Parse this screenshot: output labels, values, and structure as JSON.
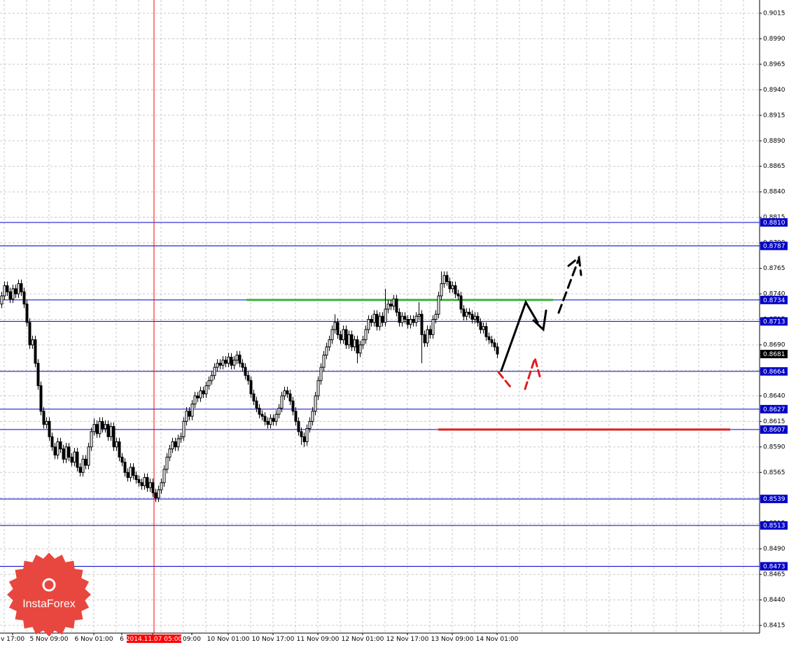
{
  "chart_data": {
    "type": "candlestick",
    "watermark": "InstaForex",
    "categories": [
      null,
      null,
      null,
      null,
      "v 17:00",
      null,
      null,
      null,
      null,
      null,
      null,
      null,
      null,
      null,
      null,
      null,
      null,
      "5 Nov 09:00",
      null,
      null,
      null,
      null,
      null,
      null,
      null,
      null,
      null,
      null,
      null,
      null,
      null,
      null,
      null,
      "6 Nov 01:00",
      null,
      null,
      null,
      null,
      null,
      null,
      null,
      null,
      null,
      "6",
      null,
      null,
      null,
      null,
      null,
      null,
      null,
      null,
      null,
      null,
      "2014.11.07 05:00",
      null,
      null,
      null,
      null,
      null,
      null,
      null,
      null,
      null,
      null,
      null,
      null,
      null,
      "09:00",
      null,
      null,
      null,
      null,
      null,
      null,
      null,
      null,
      null,
      null,
      null,
      null,
      "10 Nov 01:00",
      null,
      null,
      null,
      null,
      null,
      null,
      null,
      null,
      null,
      null,
      null,
      null,
      null,
      null,
      null,
      "10 Nov 17:00",
      null,
      null,
      null,
      null,
      null,
      null,
      null,
      null,
      null,
      null,
      null,
      null,
      null,
      null,
      null,
      "11 Nov 09:00",
      null,
      null,
      null,
      null,
      null,
      null,
      null,
      null,
      null,
      null,
      null,
      null,
      null,
      null,
      null,
      "12 Nov 01:00",
      null,
      null,
      null,
      null,
      null,
      null,
      null,
      null,
      null,
      null,
      null,
      null,
      null,
      null,
      null,
      "12 Nov 17:00",
      null,
      null,
      null,
      null,
      null,
      null,
      null,
      null,
      null,
      null,
      null,
      null,
      null,
      null,
      null,
      "13 Nov 09:00",
      null,
      null,
      null,
      null,
      null,
      null,
      null,
      null,
      null,
      null,
      null,
      null,
      null,
      null,
      null,
      "14 Nov 01:00"
    ],
    "open": [
      0.873,
      0.8738,
      0.8748,
      0.8742,
      0.8735,
      0.8745,
      0.874,
      0.875,
      0.8742,
      0.873,
      0.8712,
      0.869,
      0.8695,
      0.8672,
      0.865,
      0.8625,
      0.8612,
      0.8615,
      0.86,
      0.859,
      0.8582,
      0.8595,
      0.8588,
      0.8578,
      0.859,
      0.858,
      0.8575,
      0.8585,
      0.857,
      0.8565,
      0.8578,
      0.8572,
      0.859,
      0.8605,
      0.8612,
      0.8603,
      0.8615,
      0.8608,
      0.8612,
      0.86,
      0.861,
      0.859,
      0.8595,
      0.858,
      0.8575,
      0.8565,
      0.856,
      0.857,
      0.8562,
      0.8558,
      0.8555,
      0.8552,
      0.856,
      0.855,
      0.8555,
      0.8545,
      0.854,
      0.8548,
      0.8555,
      0.8568,
      0.858,
      0.8588,
      0.8595,
      0.859,
      0.8598,
      0.86,
      0.8615,
      0.8625,
      0.862,
      0.8632,
      0.864,
      0.8638,
      0.8645,
      0.8642,
      0.865,
      0.8655,
      0.866,
      0.8668,
      0.8672,
      0.867,
      0.8675,
      0.8672,
      0.8678,
      0.867,
      0.8675,
      0.868,
      0.8672,
      0.8668,
      0.866,
      0.8655,
      0.8642,
      0.8635,
      0.8628,
      0.8622,
      0.862,
      0.8615,
      0.8612,
      0.8618,
      0.8615,
      0.8622,
      0.8628,
      0.864,
      0.8645,
      0.8642,
      0.8635,
      0.8625,
      0.8615,
      0.8605,
      0.86,
      0.8595,
      0.8608,
      0.8615,
      0.8625,
      0.864,
      0.8655,
      0.8668,
      0.868,
      0.8688,
      0.8695,
      0.8705,
      0.8712,
      0.87,
      0.8695,
      0.8705,
      0.869,
      0.87,
      0.8688,
      0.8695,
      0.8682,
      0.869,
      0.8695,
      0.8705,
      0.8715,
      0.8712,
      0.872,
      0.8708,
      0.8718,
      0.8712,
      0.8725,
      0.873,
      0.8728,
      0.8735,
      0.8722,
      0.8712,
      0.8718,
      0.8715,
      0.871,
      0.8715,
      0.8712,
      0.8718,
      0.872,
      0.87,
      0.8692,
      0.8705,
      0.87,
      0.8715,
      0.872,
      0.8738,
      0.875,
      0.8758,
      0.8752,
      0.8745,
      0.8748,
      0.874,
      0.8738,
      0.8725,
      0.8718,
      0.8722,
      0.872,
      0.8715,
      0.8718,
      0.8712,
      0.8705,
      0.8708,
      0.8698,
      0.8695,
      0.8692,
      0.8688
    ],
    "high": [
      0.8742,
      0.8752,
      0.8752,
      0.8746,
      0.8749,
      0.8749,
      0.8754,
      0.8754,
      0.8746,
      0.8734,
      0.8716,
      0.8699,
      0.8699,
      0.8676,
      0.8654,
      0.8629,
      0.8619,
      0.8619,
      0.8604,
      0.8594,
      0.8599,
      0.8599,
      0.8592,
      0.8594,
      0.8594,
      0.8584,
      0.8589,
      0.8589,
      0.8574,
      0.8582,
      0.8582,
      0.8594,
      0.8609,
      0.8618,
      0.8616,
      0.8619,
      0.8619,
      0.8616,
      0.8616,
      0.8614,
      0.8614,
      0.8599,
      0.8599,
      0.8584,
      0.8579,
      0.8569,
      0.8574,
      0.8574,
      0.8566,
      0.8562,
      0.8559,
      0.8564,
      0.8564,
      0.8559,
      0.8559,
      0.8549,
      0.8552,
      0.8559,
      0.8572,
      0.8584,
      0.8592,
      0.8599,
      0.8599,
      0.8602,
      0.8604,
      0.8619,
      0.8629,
      0.8629,
      0.8636,
      0.8644,
      0.8644,
      0.8649,
      0.8649,
      0.8654,
      0.8659,
      0.8664,
      0.8672,
      0.8676,
      0.8676,
      0.8679,
      0.8679,
      0.8682,
      0.8682,
      0.8679,
      0.8684,
      0.8684,
      0.8676,
      0.8672,
      0.8664,
      0.8659,
      0.8646,
      0.8639,
      0.8632,
      0.8626,
      0.8624,
      0.8619,
      0.8622,
      0.8622,
      0.8626,
      0.8632,
      0.8644,
      0.8649,
      0.8649,
      0.8646,
      0.8639,
      0.8629,
      0.8619,
      0.8609,
      0.8604,
      0.8612,
      0.8619,
      0.8629,
      0.8644,
      0.8659,
      0.8672,
      0.8684,
      0.8692,
      0.8699,
      0.8709,
      0.872,
      0.8716,
      0.8704,
      0.8709,
      0.8709,
      0.8704,
      0.8704,
      0.8699,
      0.8699,
      0.8694,
      0.8699,
      0.8709,
      0.8719,
      0.8719,
      0.8724,
      0.8724,
      0.8722,
      0.8722,
      0.8745,
      0.8734,
      0.8734,
      0.8739,
      0.8739,
      0.8726,
      0.8722,
      0.8722,
      0.8719,
      0.8719,
      0.8719,
      0.8722,
      0.8732,
      0.8724,
      0.8704,
      0.8709,
      0.8709,
      0.8719,
      0.8724,
      0.8742,
      0.8762,
      0.8762,
      0.8762,
      0.8756,
      0.8752,
      0.8752,
      0.8744,
      0.8742,
      0.8729,
      0.8726,
      0.8726,
      0.8724,
      0.8722,
      0.8722,
      0.8716,
      0.8712,
      0.8712,
      0.8702,
      0.8699,
      0.8696,
      0.8692
    ],
    "low": [
      0.8726,
      0.8734,
      0.8738,
      0.8731,
      0.8731,
      0.8736,
      0.8736,
      0.8738,
      0.8726,
      0.8708,
      0.8686,
      0.8686,
      0.8668,
      0.8646,
      0.8621,
      0.8608,
      0.8608,
      0.8596,
      0.8586,
      0.8578,
      0.8578,
      0.8584,
      0.8574,
      0.8574,
      0.8576,
      0.8571,
      0.8571,
      0.8566,
      0.8561,
      0.8561,
      0.8568,
      0.8568,
      0.8586,
      0.8601,
      0.8599,
      0.8599,
      0.8604,
      0.8604,
      0.8596,
      0.8596,
      0.8586,
      0.8586,
      0.8576,
      0.8571,
      0.8561,
      0.8556,
      0.8556,
      0.8558,
      0.8554,
      0.8551,
      0.8548,
      0.8548,
      0.8546,
      0.8546,
      0.8541,
      0.8536,
      0.8536,
      0.8544,
      0.8551,
      0.8564,
      0.8576,
      0.8584,
      0.8586,
      0.8586,
      0.8594,
      0.8596,
      0.8611,
      0.8616,
      0.8616,
      0.8628,
      0.8634,
      0.8634,
      0.8638,
      0.8638,
      0.8646,
      0.8651,
      0.8656,
      0.8664,
      0.8666,
      0.8666,
      0.8668,
      0.8668,
      0.8666,
      0.8666,
      0.8671,
      0.8668,
      0.8664,
      0.8656,
      0.8651,
      0.8638,
      0.8631,
      0.8624,
      0.8618,
      0.8616,
      0.8611,
      0.8608,
      0.8608,
      0.8611,
      0.8611,
      0.8618,
      0.8624,
      0.8636,
      0.8638,
      0.8631,
      0.8621,
      0.8611,
      0.8601,
      0.8592,
      0.859,
      0.8591,
      0.8604,
      0.8611,
      0.8621,
      0.8636,
      0.8651,
      0.8664,
      0.8676,
      0.8684,
      0.8691,
      0.8701,
      0.8696,
      0.8691,
      0.8691,
      0.8686,
      0.8686,
      0.8684,
      0.8684,
      0.8672,
      0.8678,
      0.8686,
      0.8691,
      0.8701,
      0.8708,
      0.8708,
      0.8704,
      0.8704,
      0.8708,
      0.8708,
      0.8721,
      0.8724,
      0.8724,
      0.8718,
      0.8708,
      0.8708,
      0.8711,
      0.8706,
      0.8706,
      0.8708,
      0.8708,
      0.8714,
      0.8672,
      0.8688,
      0.8688,
      0.8696,
      0.8696,
      0.8711,
      0.8716,
      0.8734,
      0.8746,
      0.8748,
      0.8741,
      0.8741,
      0.8736,
      0.8734,
      0.8721,
      0.8714,
      0.8714,
      0.8716,
      0.8711,
      0.8711,
      0.8708,
      0.8701,
      0.8701,
      0.8694,
      0.8691,
      0.8688,
      0.8684,
      0.8677
    ],
    "close": [
      0.8738,
      0.8748,
      0.8742,
      0.8735,
      0.8745,
      0.874,
      0.875,
      0.8742,
      0.873,
      0.8712,
      0.869,
      0.8695,
      0.8672,
      0.865,
      0.8625,
      0.8612,
      0.8615,
      0.86,
      0.859,
      0.8582,
      0.8595,
      0.8588,
      0.8578,
      0.859,
      0.858,
      0.8575,
      0.8585,
      0.857,
      0.8565,
      0.8578,
      0.8572,
      0.859,
      0.8605,
      0.8612,
      0.8603,
      0.8615,
      0.8608,
      0.8612,
      0.86,
      0.861,
      0.859,
      0.8595,
      0.858,
      0.8575,
      0.8565,
      0.856,
      0.857,
      0.8562,
      0.8558,
      0.8555,
      0.8552,
      0.856,
      0.855,
      0.8555,
      0.8545,
      0.854,
      0.8548,
      0.8555,
      0.8568,
      0.858,
      0.8588,
      0.8595,
      0.859,
      0.8598,
      0.86,
      0.8615,
      0.8625,
      0.862,
      0.8632,
      0.864,
      0.8638,
      0.8645,
      0.8642,
      0.865,
      0.8655,
      0.866,
      0.8668,
      0.8672,
      0.867,
      0.8675,
      0.8672,
      0.8678,
      0.867,
      0.8675,
      0.868,
      0.8672,
      0.8668,
      0.866,
      0.8655,
      0.8642,
      0.8635,
      0.8628,
      0.8622,
      0.862,
      0.8615,
      0.8612,
      0.8618,
      0.8615,
      0.8622,
      0.8628,
      0.864,
      0.8645,
      0.8642,
      0.8635,
      0.8625,
      0.8615,
      0.8605,
      0.86,
      0.8595,
      0.8608,
      0.8615,
      0.8625,
      0.864,
      0.8655,
      0.8668,
      0.868,
      0.8688,
      0.8695,
      0.8705,
      0.8712,
      0.87,
      0.8695,
      0.8705,
      0.869,
      0.87,
      0.8688,
      0.8695,
      0.8682,
      0.869,
      0.8695,
      0.8705,
      0.8715,
      0.8712,
      0.872,
      0.8708,
      0.8718,
      0.8712,
      0.8725,
      0.873,
      0.8728,
      0.8735,
      0.8722,
      0.8712,
      0.8718,
      0.8715,
      0.871,
      0.8715,
      0.8712,
      0.8718,
      0.872,
      0.87,
      0.8692,
      0.8705,
      0.87,
      0.8715,
      0.872,
      0.8738,
      0.875,
      0.8758,
      0.8752,
      0.8745,
      0.8748,
      0.874,
      0.8738,
      0.8725,
      0.8718,
      0.8722,
      0.872,
      0.8715,
      0.8718,
      0.8712,
      0.8705,
      0.8708,
      0.8698,
      0.8695,
      0.8692,
      0.8688,
      0.8681
    ],
    "ylim": [
      0.84075,
      0.9028
    ],
    "yticks": [
      {
        "value": 0.8415,
        "label": "0.8415"
      },
      {
        "value": 0.844,
        "label": "0.8440"
      },
      {
        "value": 0.8465,
        "label": "0.8465"
      },
      {
        "value": 0.849,
        "label": "0.8490"
      },
      {
        "value": 0.8515,
        "label": "0.8515"
      },
      {
        "value": 0.854,
        "label": "0.8540"
      },
      {
        "value": 0.8565,
        "label": "0.8565"
      },
      {
        "value": 0.859,
        "label": "0.8590"
      },
      {
        "value": 0.8615,
        "label": "0.8615"
      },
      {
        "value": 0.864,
        "label": "0.8640"
      },
      {
        "value": 0.8665,
        "label": "0.8665"
      },
      {
        "value": 0.869,
        "label": "0.8690"
      },
      {
        "value": 0.8715,
        "label": "0.8715"
      },
      {
        "value": 0.874,
        "label": "0.8740"
      },
      {
        "value": 0.8765,
        "label": "0.8765"
      },
      {
        "value": 0.879,
        "label": "0.8790"
      },
      {
        "value": 0.8815,
        "label": "0.8815"
      },
      {
        "value": 0.884,
        "label": "0.8840"
      },
      {
        "value": 0.8865,
        "label": "0.8865"
      },
      {
        "value": 0.889,
        "label": "0.8890"
      },
      {
        "value": 0.8915,
        "label": "0.8915"
      },
      {
        "value": 0.894,
        "label": "0.8940"
      },
      {
        "value": 0.8965,
        "label": "0.8965"
      },
      {
        "value": 0.899,
        "label": "0.8990"
      },
      {
        "value": 0.9015,
        "label": "0.9015"
      }
    ],
    "grid": true,
    "level_color": "#0000c8",
    "levels": [
      {
        "value": 0.881,
        "label": "0.8810"
      },
      {
        "value": 0.8787,
        "label": "0.8787"
      },
      {
        "value": 0.8734,
        "label": "0.8734"
      },
      {
        "value": 0.8713,
        "label": "0.8713"
      },
      {
        "value": 0.8664,
        "label": "0.8664"
      },
      {
        "value": 0.8627,
        "label": "0.8627"
      },
      {
        "value": 0.8607,
        "label": "0.8607"
      },
      {
        "value": 0.8539,
        "label": "0.8539"
      },
      {
        "value": 0.8513,
        "label": "0.8513"
      },
      {
        "value": 0.8473,
        "label": "0.8473"
      }
    ],
    "segments": [
      {
        "value": 0.8734,
        "color": "#3cb43c"
      },
      {
        "value": 0.8607,
        "color": "#e01e1e"
      }
    ],
    "last_price": {
      "value": 0.8681,
      "label": "0.8681"
    },
    "vertical_line": {
      "at": "2014.11.07 05:00",
      "color": "#ff0000"
    }
  }
}
